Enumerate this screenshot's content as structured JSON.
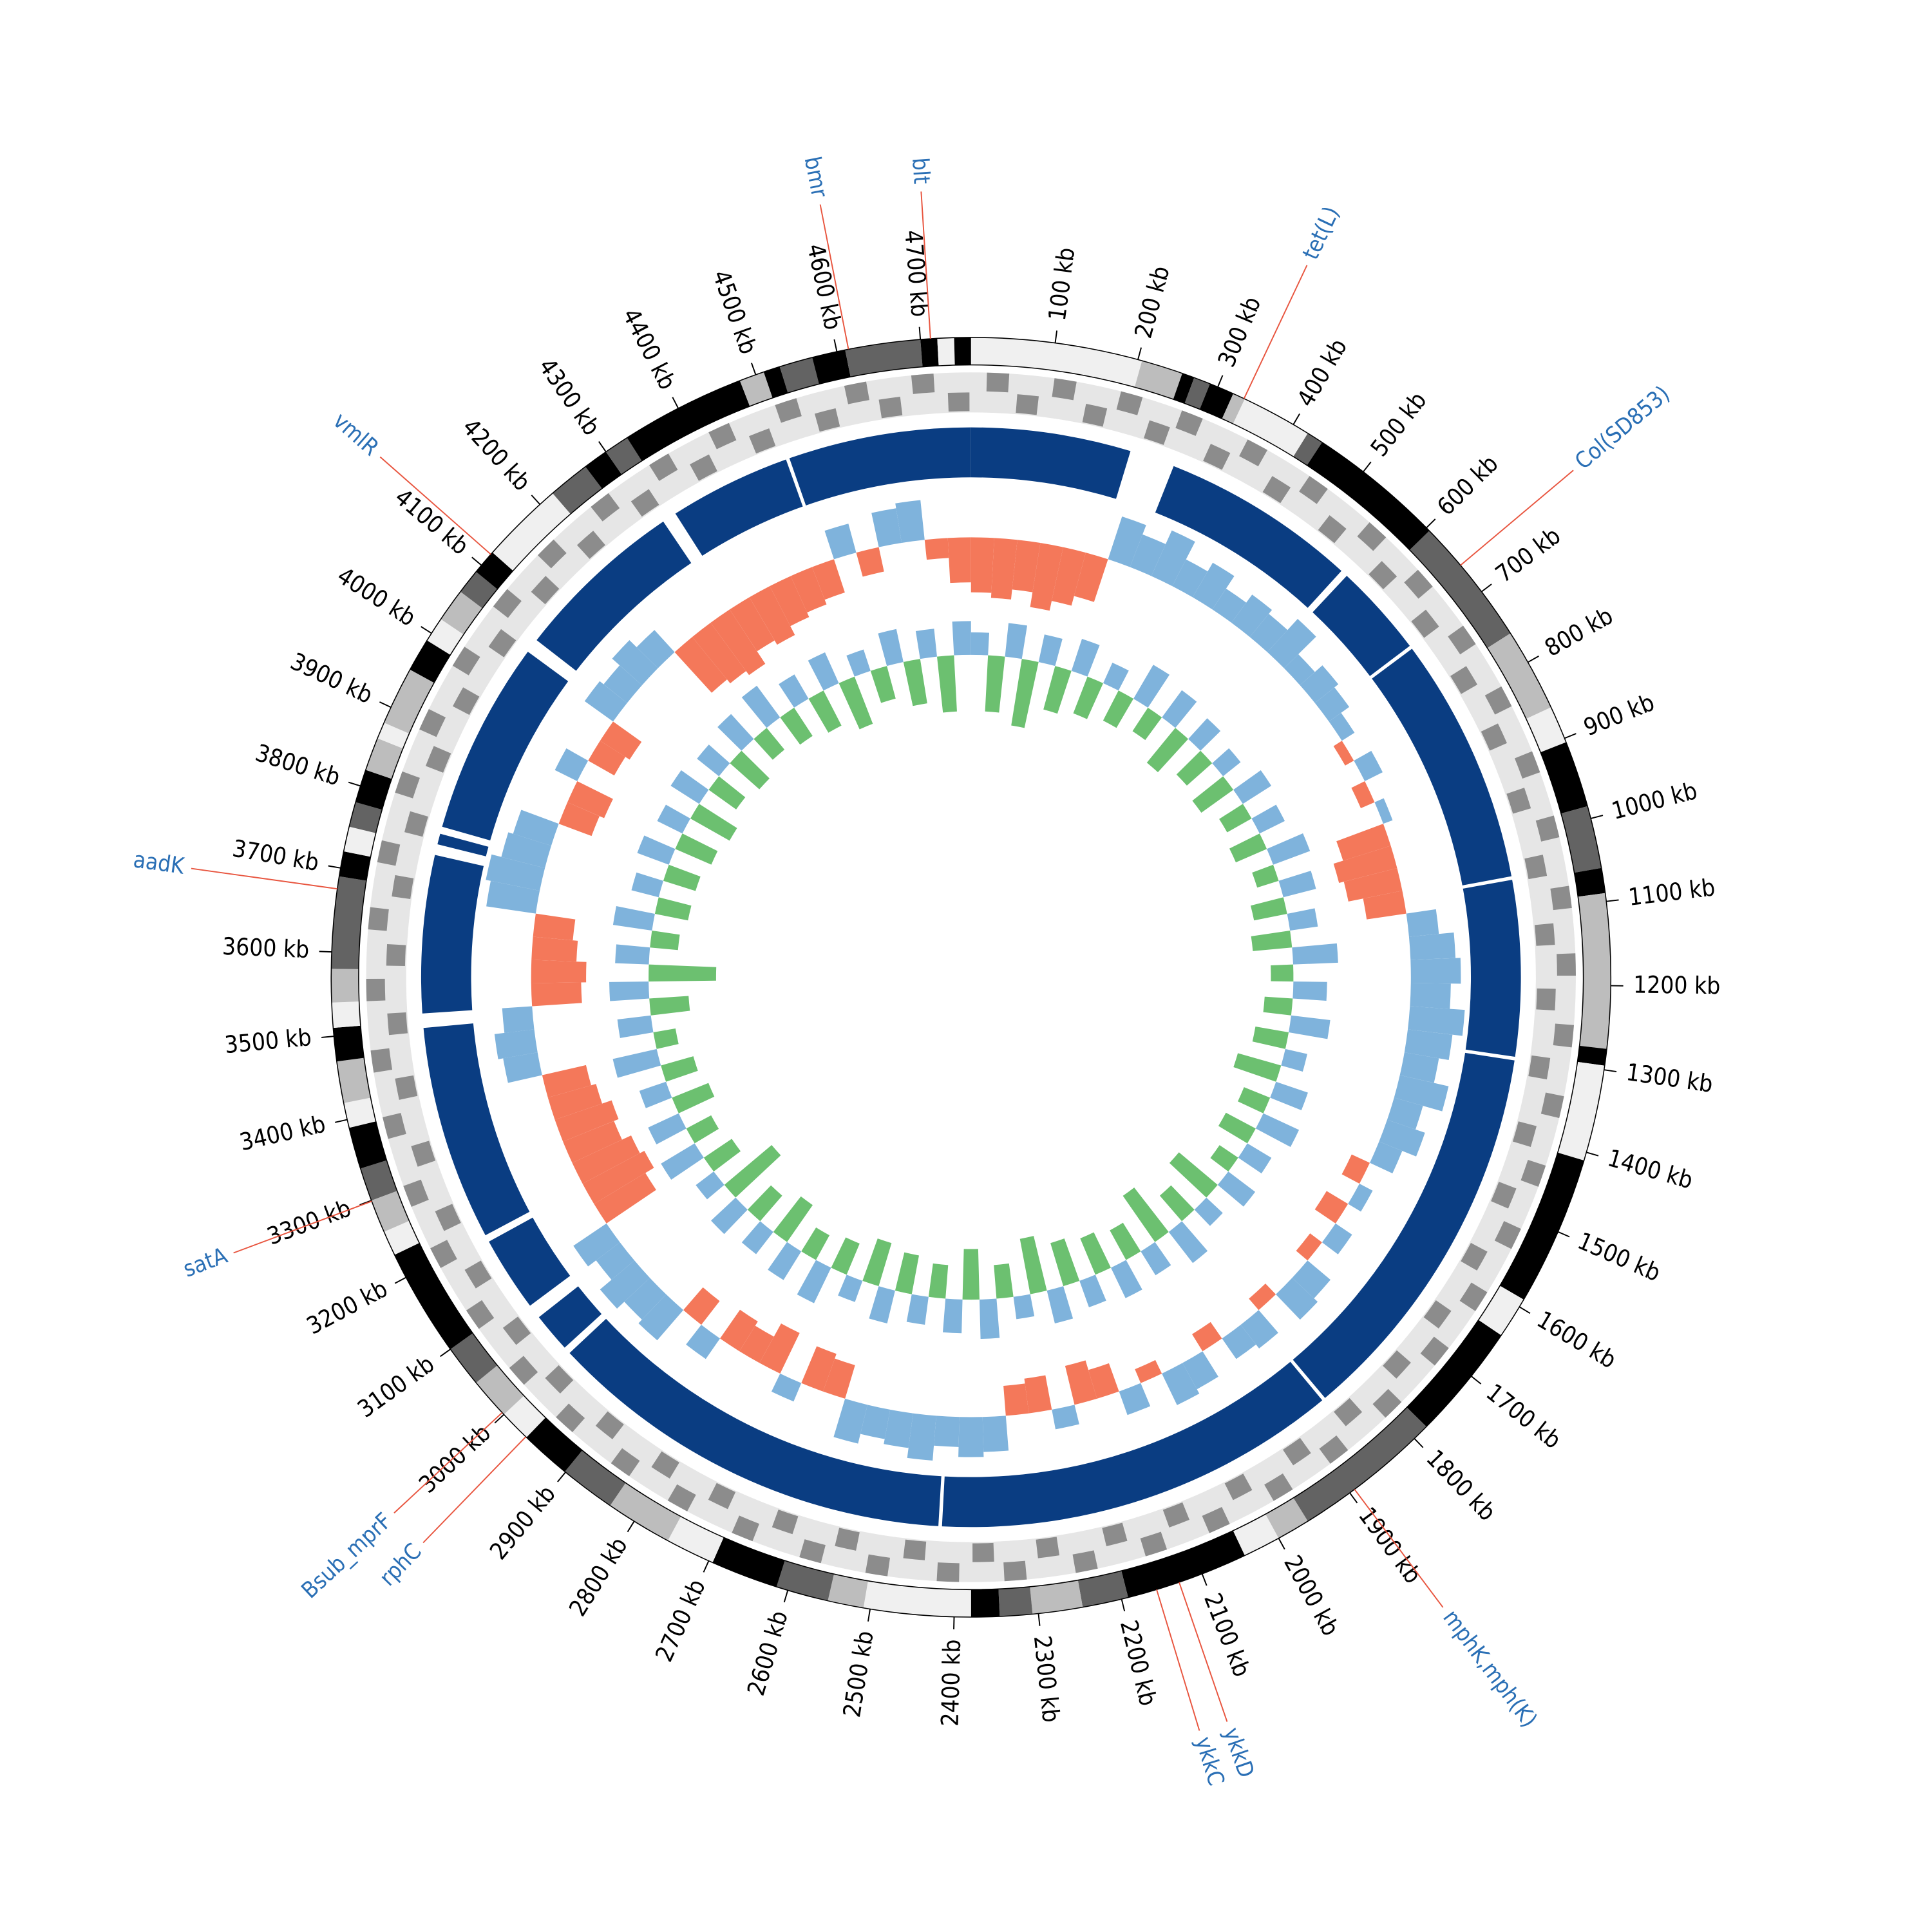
{
  "chart_data": {
    "type": "circular",
    "xlim": [
      0,
      4760
    ],
    "xticks": [
      {
        "value": 100,
        "label": "100 kb"
      },
      {
        "value": 200,
        "label": "200 kb"
      },
      {
        "value": 300,
        "label": "300 kb"
      },
      {
        "value": 400,
        "label": "400 kb"
      },
      {
        "value": 500,
        "label": "500 kb"
      },
      {
        "value": 600,
        "label": "600 kb"
      },
      {
        "value": 700,
        "label": "700 kb"
      },
      {
        "value": 800,
        "label": "800 kb"
      },
      {
        "value": 900,
        "label": "900 kb"
      },
      {
        "value": 1000,
        "label": "1000 kb"
      },
      {
        "value": 1100,
        "label": "1100 kb"
      },
      {
        "value": 1200,
        "label": "1200 kb"
      },
      {
        "value": 1300,
        "label": "1300 kb"
      },
      {
        "value": 1400,
        "label": "1400 kb"
      },
      {
        "value": 1500,
        "label": "1500 kb"
      },
      {
        "value": 1600,
        "label": "1600 kb"
      },
      {
        "value": 1700,
        "label": "1700 kb"
      },
      {
        "value": 1800,
        "label": "1800 kb"
      },
      {
        "value": 1900,
        "label": "1900 kb"
      },
      {
        "value": 2000,
        "label": "2000 kb"
      },
      {
        "value": 2100,
        "label": "2100 kb"
      },
      {
        "value": 2200,
        "label": "2200 kb"
      },
      {
        "value": 2300,
        "label": "2300 kb"
      },
      {
        "value": 2400,
        "label": "2400 kb"
      },
      {
        "value": 2500,
        "label": "2500 kb"
      },
      {
        "value": 2600,
        "label": "2600 kb"
      },
      {
        "value": 2700,
        "label": "2700 kb"
      },
      {
        "value": 2800,
        "label": "2800 kb"
      },
      {
        "value": 2900,
        "label": "2900 kb"
      },
      {
        "value": 3000,
        "label": "3000 kb"
      },
      {
        "value": 3100,
        "label": "3100 kb"
      },
      {
        "value": 3200,
        "label": "3200 kb"
      },
      {
        "value": 3300,
        "label": "3300 kb"
      },
      {
        "value": 3400,
        "label": "3400 kb"
      },
      {
        "value": 3500,
        "label": "3500 kb"
      },
      {
        "value": 3600,
        "label": "3600 kb"
      },
      {
        "value": 3700,
        "label": "3700 kb"
      },
      {
        "value": 3800,
        "label": "3800 kb"
      },
      {
        "value": 3900,
        "label": "3900 kb"
      },
      {
        "value": 4000,
        "label": "4000 kb"
      },
      {
        "value": 4100,
        "label": "4100 kb"
      },
      {
        "value": 4200,
        "label": "4200 kb"
      },
      {
        "value": 4300,
        "label": "4300 kb"
      },
      {
        "value": 4400,
        "label": "4400 kb"
      },
      {
        "value": 4500,
        "label": "4500 kb"
      },
      {
        "value": 4600,
        "label": "4600 kb"
      },
      {
        "value": 4700,
        "label": "4700 kb"
      }
    ],
    "contigs": [
      {
        "start": 0,
        "end": 205,
        "color": "#f0f0f0"
      },
      {
        "start": 205,
        "end": 255,
        "color": "#bdbdbd"
      },
      {
        "start": 255,
        "end": 270,
        "color": "#000000"
      },
      {
        "start": 270,
        "end": 290,
        "color": "#636363"
      },
      {
        "start": 290,
        "end": 320,
        "color": "#000000"
      },
      {
        "start": 320,
        "end": 335,
        "color": "#bdbdbd"
      },
      {
        "start": 335,
        "end": 420,
        "color": "#f0f0f0"
      },
      {
        "start": 420,
        "end": 440,
        "color": "#636363"
      },
      {
        "start": 440,
        "end": 605,
        "color": "#000000"
      },
      {
        "start": 605,
        "end": 760,
        "color": "#636363"
      },
      {
        "start": 760,
        "end": 860,
        "color": "#bdbdbd"
      },
      {
        "start": 860,
        "end": 905,
        "color": "#f0f0f0"
      },
      {
        "start": 905,
        "end": 985,
        "color": "#000000"
      },
      {
        "start": 985,
        "end": 1060,
        "color": "#636363"
      },
      {
        "start": 1060,
        "end": 1090,
        "color": "#000000"
      },
      {
        "start": 1090,
        "end": 1275,
        "color": "#bdbdbd"
      },
      {
        "start": 1275,
        "end": 1295,
        "color": "#000000"
      },
      {
        "start": 1295,
        "end": 1410,
        "color": "#f0f0f0"
      },
      {
        "start": 1410,
        "end": 1590,
        "color": "#000000"
      },
      {
        "start": 1590,
        "end": 1640,
        "color": "#f0f0f0"
      },
      {
        "start": 1640,
        "end": 1780,
        "color": "#000000"
      },
      {
        "start": 1780,
        "end": 1960,
        "color": "#636363"
      },
      {
        "start": 1960,
        "end": 2000,
        "color": "#bdbdbd"
      },
      {
        "start": 2000,
        "end": 2045,
        "color": "#f0f0f0"
      },
      {
        "start": 2045,
        "end": 2192,
        "color": "#000000"
      },
      {
        "start": 2192,
        "end": 2247,
        "color": "#636363"
      },
      {
        "start": 2247,
        "end": 2307,
        "color": "#bdbdbd"
      },
      {
        "start": 2307,
        "end": 2346,
        "color": "#636363"
      },
      {
        "start": 2346,
        "end": 2380,
        "color": "#000000"
      },
      {
        "start": 2380,
        "end": 2508,
        "color": "#f0f0f0"
      },
      {
        "start": 2508,
        "end": 2551,
        "color": "#bdbdbd"
      },
      {
        "start": 2551,
        "end": 2614,
        "color": "#636363"
      },
      {
        "start": 2614,
        "end": 2695,
        "color": "#000000"
      },
      {
        "start": 2695,
        "end": 2754,
        "color": "#f0f0f0"
      },
      {
        "start": 2754,
        "end": 2834,
        "color": "#bdbdbd"
      },
      {
        "start": 2834,
        "end": 2901,
        "color": "#636363"
      },
      {
        "start": 2901,
        "end": 2962,
        "color": "#000000"
      },
      {
        "start": 2962,
        "end": 3000,
        "color": "#f0f0f0"
      },
      {
        "start": 3000,
        "end": 3050,
        "color": "#bdbdbd"
      },
      {
        "start": 3050,
        "end": 3100,
        "color": "#636363"
      },
      {
        "start": 3100,
        "end": 3230,
        "color": "#000000"
      },
      {
        "start": 3230,
        "end": 3260,
        "color": "#f0f0f0"
      },
      {
        "start": 3260,
        "end": 3300,
        "color": "#bdbdbd"
      },
      {
        "start": 3300,
        "end": 3340,
        "color": "#636363"
      },
      {
        "start": 3340,
        "end": 3390,
        "color": "#000000"
      },
      {
        "start": 3390,
        "end": 3420,
        "color": "#f0f0f0"
      },
      {
        "start": 3420,
        "end": 3470,
        "color": "#bdbdbd"
      },
      {
        "start": 3470,
        "end": 3510,
        "color": "#000000"
      },
      {
        "start": 3510,
        "end": 3540,
        "color": "#f0f0f0"
      },
      {
        "start": 3540,
        "end": 3580,
        "color": "#bdbdbd"
      },
      {
        "start": 3580,
        "end": 3690,
        "color": "#636363"
      },
      {
        "start": 3690,
        "end": 3720,
        "color": "#000000"
      },
      {
        "start": 3720,
        "end": 3750,
        "color": "#f0f0f0"
      },
      {
        "start": 3750,
        "end": 3780,
        "color": "#636363"
      },
      {
        "start": 3780,
        "end": 3820,
        "color": "#000000"
      },
      {
        "start": 3820,
        "end": 3860,
        "color": "#bdbdbd"
      },
      {
        "start": 3860,
        "end": 3880,
        "color": "#f0f0f0"
      },
      {
        "start": 3880,
        "end": 3950,
        "color": "#bdbdbd"
      },
      {
        "start": 3950,
        "end": 3990,
        "color": "#000000"
      },
      {
        "start": 3990,
        "end": 4020,
        "color": "#f0f0f0"
      },
      {
        "start": 4020,
        "end": 4060,
        "color": "#bdbdbd"
      },
      {
        "start": 4060,
        "end": 4090,
        "color": "#636363"
      },
      {
        "start": 4090,
        "end": 4120,
        "color": "#000000"
      },
      {
        "start": 4120,
        "end": 4220,
        "color": "#f0f0f0"
      },
      {
        "start": 4220,
        "end": 4270,
        "color": "#636363"
      },
      {
        "start": 4270,
        "end": 4300,
        "color": "#000000"
      },
      {
        "start": 4300,
        "end": 4330,
        "color": "#636363"
      },
      {
        "start": 4330,
        "end": 4480,
        "color": "#000000"
      },
      {
        "start": 4480,
        "end": 4510,
        "color": "#bdbdbd"
      },
      {
        "start": 4510,
        "end": 4530,
        "color": "#000000"
      },
      {
        "start": 4530,
        "end": 4570,
        "color": "#636363"
      },
      {
        "start": 4570,
        "end": 4610,
        "color": "#000000"
      },
      {
        "start": 4610,
        "end": 4700,
        "color": "#636363"
      },
      {
        "start": 4700,
        "end": 4720,
        "color": "#000000"
      },
      {
        "start": 4720,
        "end": 4740,
        "color": "#f0f0f0"
      },
      {
        "start": 4740,
        "end": 4760,
        "color": "#000000"
      }
    ],
    "cds_color": "#8c8c8c",
    "cds_forward": [
      20,
      105,
      190,
      270,
      360,
      450,
      545,
      630,
      720,
      810,
      900,
      985,
      1075,
      1160,
      1250,
      1340,
      1430,
      1515,
      1605,
      1690,
      1780,
      1870,
      1955,
      2045,
      2130,
      2220,
      2310,
      2395,
      2485,
      2570,
      2660,
      2750,
      2835,
      2925,
      3010,
      3100,
      3190,
      3275,
      3365,
      3450,
      3540,
      3630,
      3715,
      3805,
      3890,
      3980,
      4070,
      4155,
      4245,
      4335,
      4420,
      4510,
      4600,
      4685
    ],
    "cds_reverse": [
      60,
      150,
      235,
      320,
      410,
      500,
      590,
      675,
      765,
      850,
      940,
      1030,
      1120,
      1205,
      1295,
      1385,
      1470,
      1560,
      1650,
      1735,
      1825,
      1910,
      2000,
      2090,
      2175,
      2265,
      2350,
      2440,
      2530,
      2615,
      2705,
      2790,
      2880,
      2970,
      3055,
      3145,
      3230,
      3320,
      3410,
      3495,
      3585,
      3675,
      3760,
      3850,
      3935,
      4025,
      4115,
      4200,
      4290,
      4380,
      4465,
      4555,
      4640,
      4730
    ],
    "blocks_color": "#0a3d82",
    "blocks": [
      {
        "start": 0,
        "end": 223
      },
      {
        "start": 286,
        "end": 560
      },
      {
        "start": 570,
        "end": 700
      },
      {
        "start": 705,
        "end": 1050
      },
      {
        "start": 1055,
        "end": 1300
      },
      {
        "start": 1305,
        "end": 1850
      },
      {
        "start": 1855,
        "end": 2420
      },
      {
        "start": 2425,
        "end": 3000
      },
      {
        "start": 3010,
        "end": 3065
      },
      {
        "start": 3085,
        "end": 3190
      },
      {
        "start": 3200,
        "end": 3500
      },
      {
        "start": 3520,
        "end": 3740
      },
      {
        "start": 3755,
        "end": 3770
      },
      {
        "start": 3780,
        "end": 4050
      },
      {
        "start": 4070,
        "end": 4310
      },
      {
        "start": 4330,
        "end": 4500
      },
      {
        "start": 4505,
        "end": 4760
      }
    ],
    "windows": [
      0,
      40,
      80,
      120,
      160,
      200,
      240,
      280,
      320,
      360,
      400,
      440,
      480,
      520,
      560,
      600,
      640,
      680,
      720,
      760,
      800,
      840,
      880,
      920,
      960,
      1000,
      1040,
      1080,
      1120,
      1160,
      1200,
      1240,
      1280,
      1320,
      1360,
      1400,
      1440,
      1480,
      1520,
      1560,
      1600,
      1640,
      1680,
      1720,
      1760,
      1800,
      1840,
      1880,
      1920,
      1960,
      2000,
      2040,
      2080,
      2120,
      2160,
      2200,
      2240,
      2280,
      2320,
      2360,
      2400,
      2440,
      2480,
      2520,
      2560,
      2600,
      2640,
      2680,
      2720,
      2760,
      2800,
      2840,
      2880,
      2920,
      2960,
      3000,
      3040,
      3080,
      3120,
      3160,
      3200,
      3240,
      3280,
      3320,
      3360,
      3400,
      3440,
      3480,
      3520,
      3560,
      3600,
      3640,
      3680,
      3720,
      3760,
      3800,
      3840,
      3880,
      3920,
      3960,
      4000,
      4040,
      4080,
      4120,
      4160,
      4200,
      4240,
      4280,
      4320,
      4360,
      4400,
      4440,
      4480,
      4520,
      4560,
      4600,
      4640,
      4680,
      4720
    ],
    "gc_content": {
      "ylim": [
        -1,
        1
      ],
      "positive_color": "#7fb3dc",
      "negative_color": "#f4785a",
      "values": [
        -0.55,
        -0.6,
        -0.5,
        -0.65,
        -0.55,
        -0.45,
        0.45,
        0.35,
        0.5,
        0.3,
        0.4,
        0.25,
        0.35,
        0.3,
        0.45,
        0.2,
        0.3,
        0.25,
        0.15,
        -0.1,
        0.2,
        -0.15,
        0.1,
        -0.5,
        -0.6,
        -0.55,
        -0.4,
        0.3,
        0.45,
        0.5,
        0.4,
        0.55,
        0.45,
        0.35,
        0.5,
        0.3,
        0.4,
        0.25,
        -0.2,
        0.15,
        -0.25,
        0.2,
        -0.15,
        0.3,
        0.35,
        -0.15,
        0.3,
        0.25,
        -0.2,
        0.3,
        0.35,
        -0.15,
        0.25,
        -0.3,
        -0.4,
        0.2,
        -0.35,
        -0.3,
        0.35,
        0.4,
        0.3,
        0.45,
        0.35,
        0.3,
        0.4,
        -0.35,
        -0.4,
        0.2,
        -0.45,
        -0.3,
        -0.35,
        0.25,
        -0.3,
        0.4,
        0.35,
        0.45,
        0.3,
        0.4,
        -0.6,
        -0.7,
        -0.65,
        -0.55,
        -0.6,
        -0.5,
        -0.45,
        0.35,
        0.4,
        0.3,
        -0.5,
        -0.55,
        -0.45,
        -0.4,
        0.5,
        0.55,
        0.45,
        0.4,
        -0.35,
        -0.4,
        0.25,
        -0.3,
        -0.35,
        0.35,
        0.3,
        0.4,
        0.3,
        -0.55,
        -0.6,
        -0.65,
        -0.5,
        -0.55,
        -0.45,
        -0.4,
        -0.35,
        0.3,
        -0.25,
        0.35,
        0.4,
        -0.2,
        -0.45
      ]
    },
    "gc_skew": {
      "ylim": [
        -1,
        1
      ],
      "positive_color": "#7fb3dc",
      "negative_color": "#6cc070",
      "values": [
        0.2,
        -0.5,
        0.3,
        -0.6,
        0.25,
        -0.4,
        0.3,
        -0.35,
        0.2,
        -0.3,
        0.35,
        -0.25,
        0.3,
        -0.4,
        0.25,
        -0.3,
        0.2,
        -0.35,
        0.3,
        -0.25,
        0.25,
        -0.3,
        0.35,
        -0.2,
        0.3,
        -0.3,
        0.25,
        -0.35,
        0.4,
        -0.2,
        0.3,
        -0.25,
        0.35,
        -0.3,
        0.2,
        -0.4,
        0.3,
        -0.25,
        0.35,
        -0.3,
        0.25,
        -0.2,
        0.3,
        -0.45,
        0.2,
        -0.3,
        0.35,
        -0.5,
        0.25,
        -0.3,
        0.3,
        -0.35,
        0.25,
        -0.4,
        0.3,
        -0.5,
        0.2,
        -0.3,
        0.35,
        -0.45,
        0.3,
        -0.3,
        0.25,
        -0.35,
        0.3,
        -0.4,
        0.2,
        -0.3,
        0.35,
        -0.25,
        0.3,
        -0.4,
        0.25,
        -0.3,
        0.3,
        -0.55,
        0.2,
        -0.3,
        0.35,
        -0.25,
        0.3,
        -0.35,
        0.25,
        -0.3,
        0.4,
        -0.2,
        0.3,
        -0.35,
        0.35,
        -0.6,
        0.3,
        -0.25,
        0.35,
        -0.3,
        0.25,
        -0.3,
        0.3,
        -0.35,
        0.25,
        -0.4,
        0.3,
        -0.3,
        0.25,
        -0.35,
        0.3,
        -0.25,
        0.35,
        -0.3,
        0.25,
        -0.35,
        0.3,
        -0.45,
        0.2,
        -0.3,
        0.3,
        -0.4,
        0.25,
        -0.5,
        0.3
      ]
    },
    "genes": [
      {
        "name": "blt",
        "position": 4712
      },
      {
        "name": "bmr",
        "position": 4614
      },
      {
        "name": "tet(L)",
        "position": 334
      },
      {
        "name": "Col(SD853)",
        "position": 660
      },
      {
        "name": "mphK,mph(K)",
        "position": 1893
      },
      {
        "name": "ykkD",
        "position": 2129
      },
      {
        "name": "ykkC",
        "position": 2157
      },
      {
        "name": "rphC",
        "position": 2963
      },
      {
        "name": "Bsub_mprF",
        "position": 3003
      },
      {
        "name": "satA",
        "position": 3299
      },
      {
        "name": "aadK",
        "position": 3675
      },
      {
        "name": "vmlR",
        "position": 4117
      }
    ],
    "gene_label_color": "#2a6fb5",
    "gene_line_color": "#e8553f"
  }
}
